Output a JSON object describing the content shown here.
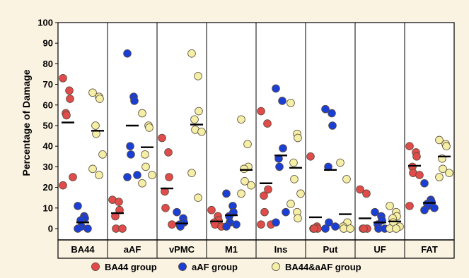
{
  "chart_data": {
    "type": "scatter",
    "title": "",
    "xlabel": "",
    "ylabel": "Percentage of Damage",
    "ylim": [
      0,
      100
    ],
    "yticks": [
      0,
      10,
      20,
      30,
      40,
      50,
      60,
      70,
      80,
      90,
      100
    ],
    "grid": false,
    "legend_position": "bottom",
    "categories": [
      "BA44",
      "aAF",
      "vPMC",
      "M1",
      "Ins",
      "Put",
      "UF",
      "FAT"
    ],
    "series": [
      {
        "name": "BA44 group",
        "color": "#e04b4b",
        "values": [
          [
            73,
            67,
            63,
            56,
            55,
            25,
            21
          ],
          [
            14,
            13,
            9,
            6,
            0,
            0
          ],
          [
            44,
            37,
            25,
            18,
            10,
            2
          ],
          [
            9,
            6,
            4,
            3,
            2,
            1
          ],
          [
            57,
            51,
            19,
            16,
            8,
            2,
            2
          ],
          [
            35,
            1,
            0,
            0,
            0
          ],
          [
            19,
            17,
            0,
            0,
            0
          ],
          [
            40,
            37,
            35,
            30,
            27,
            26,
            11
          ]
        ],
        "means": [
          51.5,
          7.5,
          19.5,
          3.5,
          22,
          5.5,
          5,
          30.5
        ]
      },
      {
        "name": "aAF group",
        "color": "#1a3fd6",
        "values": [
          [
            11,
            6,
            5,
            4,
            1,
            0,
            0
          ],
          [
            85,
            64,
            62,
            40,
            36,
            26,
            25
          ],
          [
            8,
            5,
            3,
            2,
            1
          ],
          [
            17,
            11,
            8,
            6,
            3,
            2,
            1
          ],
          [
            68,
            62,
            39,
            34,
            30,
            8,
            3
          ],
          [
            58,
            56,
            50,
            30,
            3,
            1,
            0
          ],
          [
            8,
            6,
            4,
            2,
            0,
            0
          ],
          [
            22,
            14,
            13,
            12,
            11,
            10,
            9
          ]
        ],
        "means": [
          3,
          50,
          2.5,
          6.5,
          35.5,
          28.5,
          3,
          12.5
        ]
      },
      {
        "name": "BA44&aAF group",
        "color": "#f4efa6",
        "values": [
          [
            66,
            64,
            63,
            50,
            46,
            36,
            29,
            26
          ],
          [
            56,
            50,
            49,
            36,
            30,
            26,
            22
          ],
          [
            85,
            74,
            57,
            53,
            48,
            47,
            27,
            15
          ],
          [
            53,
            41,
            30,
            29,
            23,
            21,
            17
          ],
          [
            61,
            46,
            44,
            32,
            24,
            17,
            12,
            8,
            5
          ],
          [
            32,
            24,
            3,
            1,
            0,
            0
          ],
          [
            11,
            8,
            6,
            5,
            3,
            1,
            0,
            0
          ],
          [
            43,
            41,
            40,
            34,
            29,
            27,
            25
          ]
        ],
        "means": [
          47.5,
          39.5,
          50.5,
          28.5,
          29.5,
          7,
          3.5,
          35
        ]
      }
    ]
  }
}
